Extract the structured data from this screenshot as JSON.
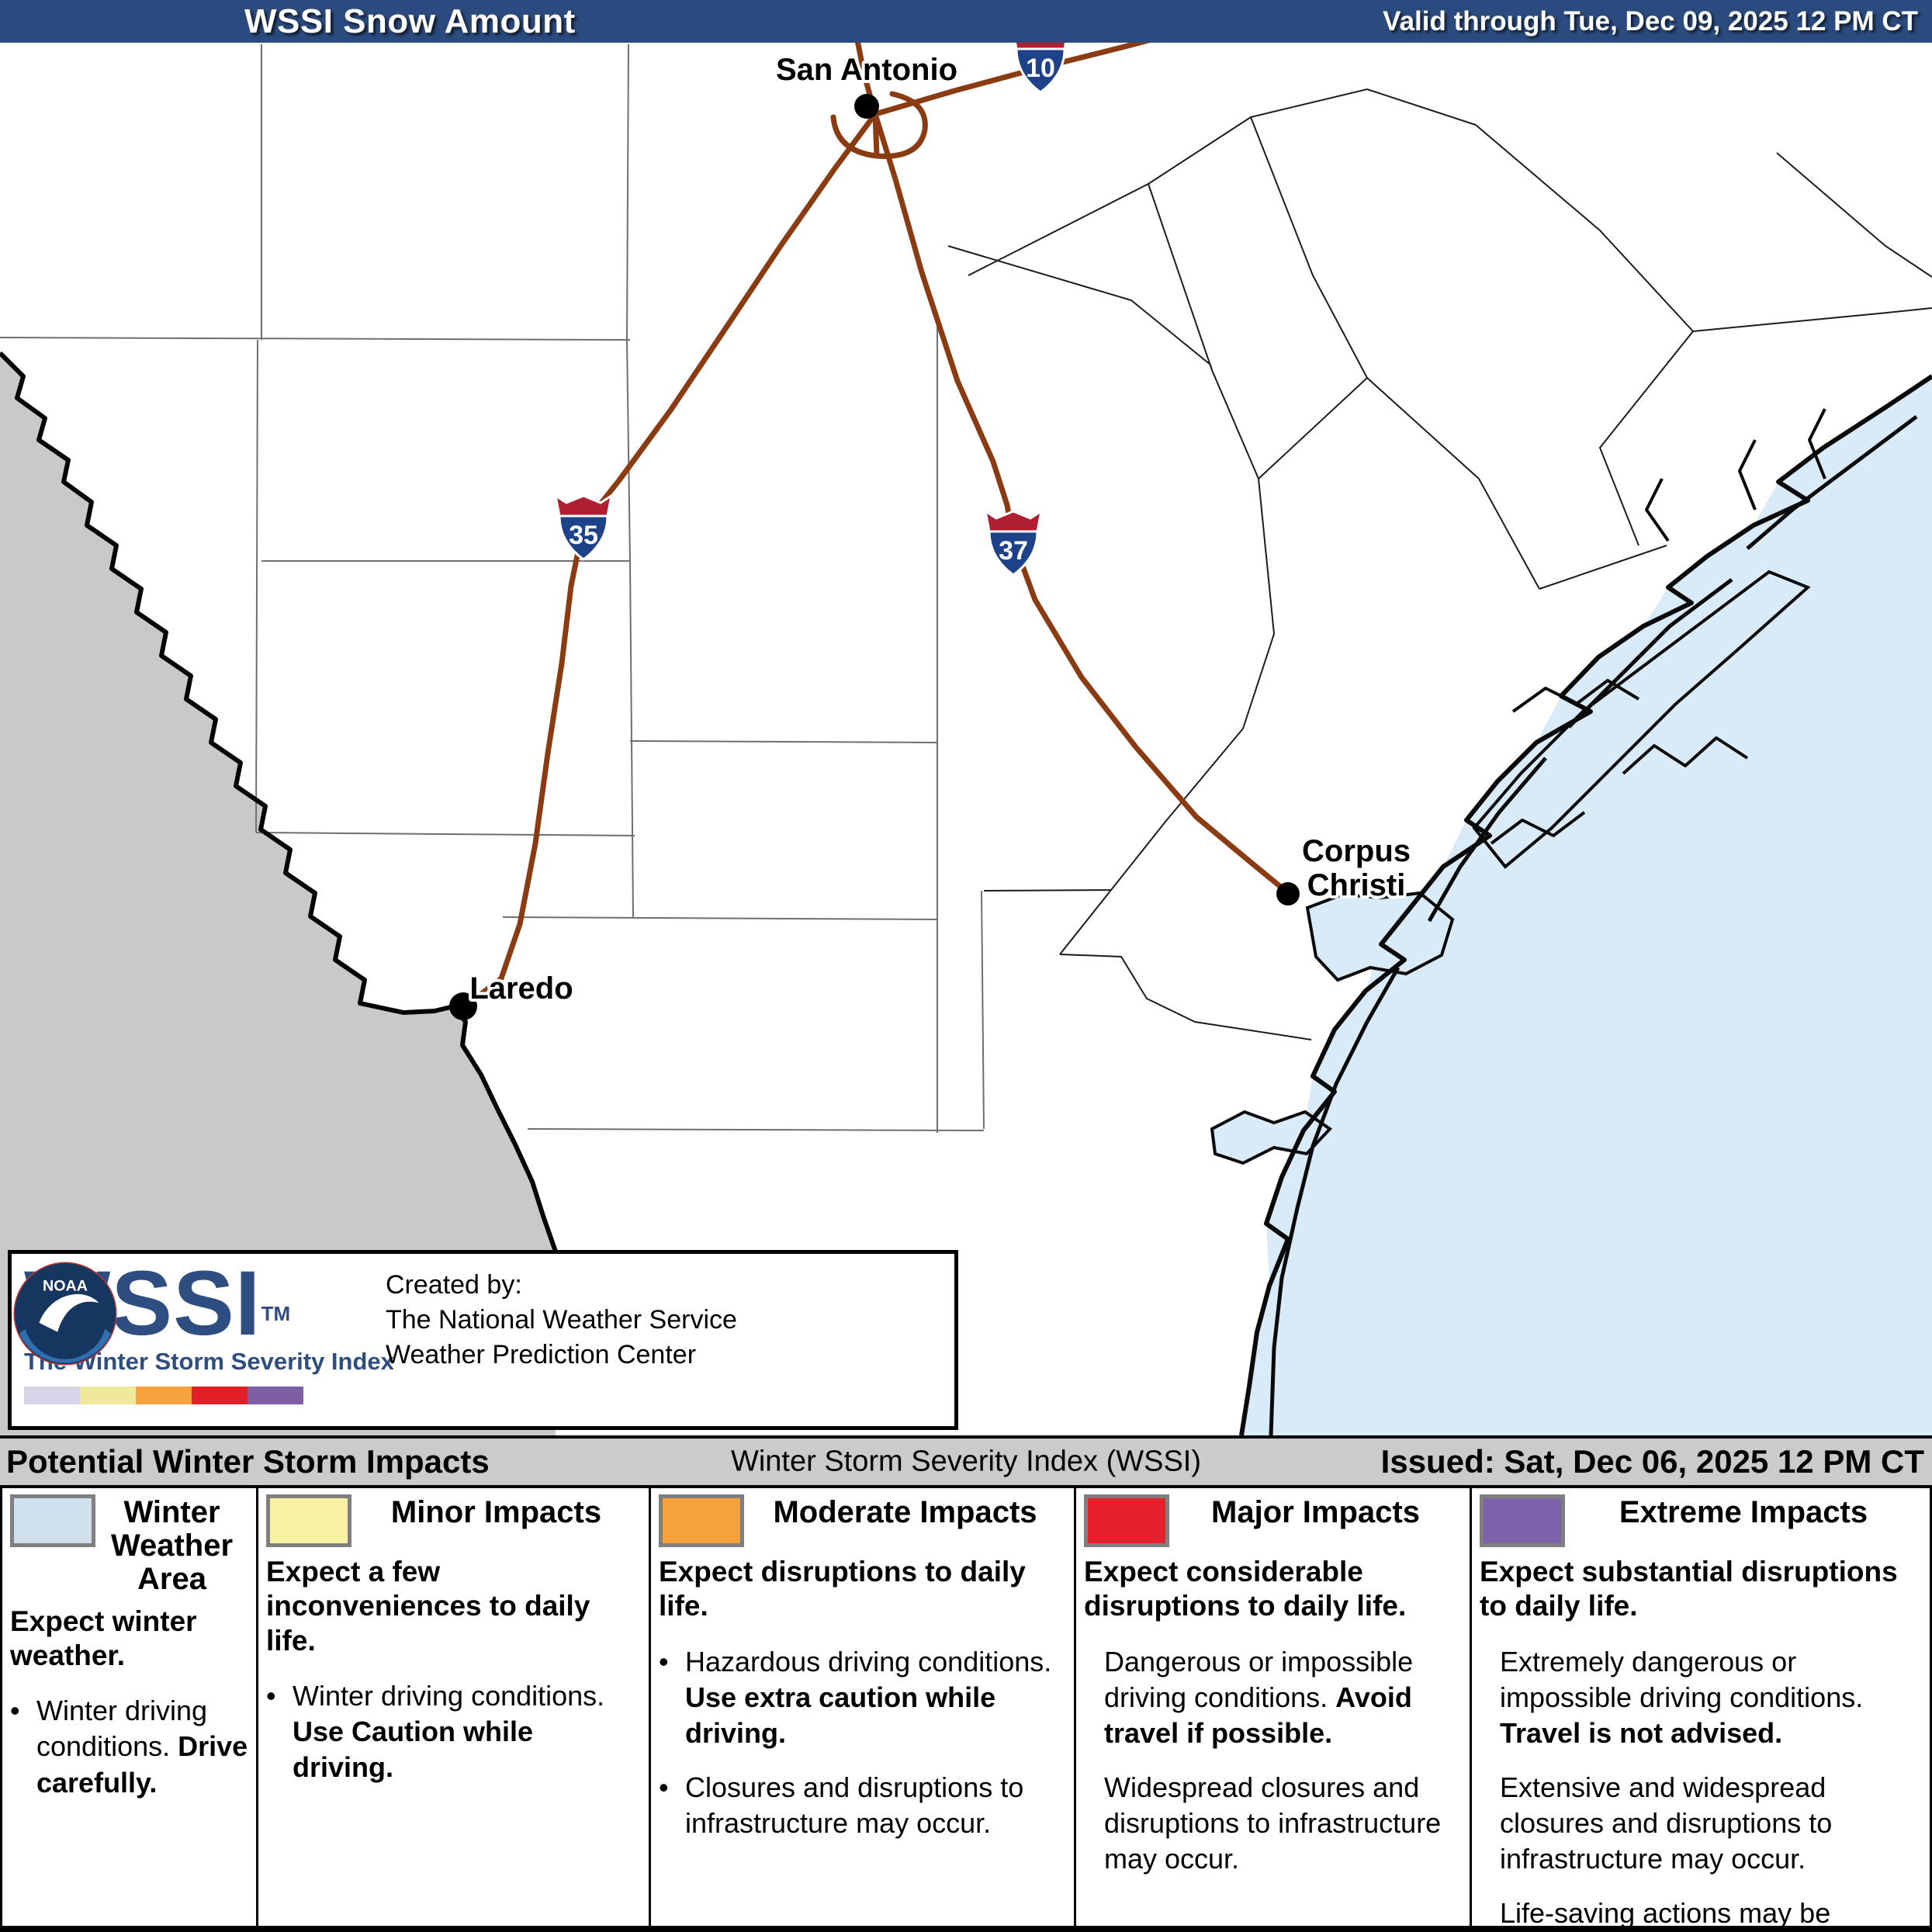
{
  "header": {
    "title": "WSSI Snow Amount",
    "valid": "Valid through Tue, Dec 09, 2025 12 PM CT"
  },
  "map": {
    "cities": [
      {
        "name": "San Antonio",
        "lines": [
          "San Antonio"
        ]
      },
      {
        "name": "Laredo",
        "lines": [
          "Laredo"
        ]
      },
      {
        "name": "Corpus Christi",
        "lines": [
          "Corpus",
          "Christi"
        ]
      }
    ],
    "shields": [
      "35",
      "37",
      "10"
    ],
    "colors": {
      "water": "#d9eaf8",
      "mexico": "#c9c9c9",
      "road": "#8a3b12",
      "shield_red": "#b01f31",
      "shield_blue": "#1d4289"
    }
  },
  "credit_box": {
    "logo": "WSSI",
    "logo_tm": "TM",
    "tagline": "The Winter Storm Severity Index",
    "noaa_text": "NOAA",
    "created_by": "Created by:",
    "org_line1": "The National Weather Service",
    "org_line2": "Weather Prediction Center",
    "strip_colors": [
      "#d9d5e9",
      "#efea99",
      "#f6a13b",
      "#e21f26",
      "#7c5fa5"
    ]
  },
  "status_bar": {
    "left": "Potential Winter Storm Impacts",
    "center": "Winter Storm Severity Index (WSSI)",
    "right": "Issued: Sat, Dec 06, 2025 12 PM CT"
  },
  "legend": {
    "columns": [
      {
        "color": "#cfdfeb",
        "title": "Winter Weather Area",
        "intro": "Expect winter weather.",
        "items": [
          {
            "dot": true,
            "segments": [
              {
                "text": "Winter driving conditions. ",
                "bold": false
              },
              {
                "text": "Drive carefully.",
                "bold": true
              }
            ]
          }
        ]
      },
      {
        "color": "#f6f2a2",
        "title": "Minor Impacts",
        "intro": "Expect a few inconveniences to daily life.",
        "items": [
          {
            "dot": true,
            "segments": [
              {
                "text": "Winter driving conditions. ",
                "bold": false
              },
              {
                "text": "Use Caution while driving.",
                "bold": true
              }
            ]
          }
        ]
      },
      {
        "color": "#f7a13c",
        "title": "Moderate Impacts",
        "intro": "Expect disruptions to daily life.",
        "items": [
          {
            "dot": true,
            "segments": [
              {
                "text": "Hazardous driving conditions. ",
                "bold": false
              },
              {
                "text": "Use extra caution while driving.",
                "bold": true
              }
            ]
          },
          {
            "dot": true,
            "segments": [
              {
                "text": "Closures and disruptions to infrastructure may occur.",
                "bold": false
              }
            ]
          }
        ]
      },
      {
        "color": "#e6212b",
        "title": "Major Impacts",
        "intro": "Expect considerable disruptions to daily life.",
        "items": [
          {
            "dot": false,
            "segments": [
              {
                "text": "Dangerous or impossible driving conditions. ",
                "bold": false
              },
              {
                "text": "Avoid travel if possible.",
                "bold": true
              }
            ]
          },
          {
            "dot": false,
            "segments": [
              {
                "text": "Widespread closures and disruptions to infrastructure may occur.",
                "bold": false
              }
            ]
          }
        ]
      },
      {
        "color": "#7d61a9",
        "title": "Extreme Impacts",
        "intro": "Expect substantial disruptions to daily life.",
        "items": [
          {
            "dot": false,
            "segments": [
              {
                "text": "Extremely dangerous or impossible driving conditions. ",
                "bold": false
              },
              {
                "text": "Travel is not advised.",
                "bold": true
              }
            ]
          },
          {
            "dot": false,
            "segments": [
              {
                "text": "Extensive and widespread closures and disruptions to infrastructure may occur.",
                "bold": false
              }
            ]
          },
          {
            "dot": false,
            "segments": [
              {
                "text": "Life-saving actions may be needed.",
                "bold": false
              }
            ]
          }
        ]
      }
    ]
  }
}
